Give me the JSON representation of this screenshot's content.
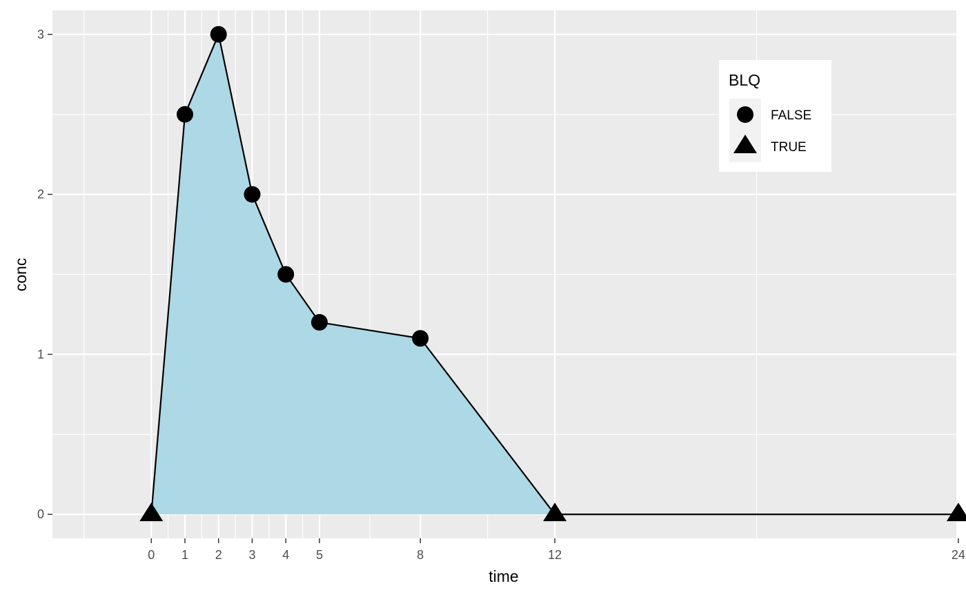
{
  "chart_data": {
    "type": "line",
    "xlabel": "time",
    "ylabel": "conc",
    "xlim": [
      -2.94,
      23.94
    ],
    "ylim": [
      -0.15,
      3.15
    ],
    "x_ticks": [
      0,
      1,
      2,
      3,
      4,
      5,
      8,
      12,
      24
    ],
    "x_tick_labels": [
      "0",
      "1",
      "2",
      "3",
      "4",
      "5",
      "8",
      "12",
      "24"
    ],
    "y_ticks": [
      0,
      1,
      2,
      3
    ],
    "y_tick_labels": [
      "0",
      "1",
      "2",
      "3"
    ],
    "x_minor_grid": [
      -2,
      0.5,
      1.5,
      2.5,
      3.5,
      4.5,
      6.5,
      10,
      18
    ],
    "y_minor_grid": [
      0.5,
      1.5,
      2.5
    ],
    "grid": true,
    "area_fill": {
      "color": "#add8e6",
      "x": [
        0,
        1,
        2,
        3,
        4,
        5,
        8,
        12
      ],
      "y": [
        0,
        2.5,
        3,
        2,
        1.5,
        1.2,
        1.1,
        0
      ]
    },
    "series": [
      {
        "x": [
          0,
          1,
          2,
          3,
          4,
          5,
          8,
          12,
          24
        ],
        "y": [
          0,
          2.5,
          3,
          2,
          1.5,
          1.2,
          1.1,
          0,
          0
        ],
        "BLQ": [
          true,
          false,
          false,
          false,
          false,
          false,
          false,
          true,
          true
        ],
        "line_color": "#000000"
      }
    ],
    "legend": {
      "title": "BLQ",
      "placement": "top-right",
      "entries": [
        {
          "label": "FALSE",
          "shape": "circle"
        },
        {
          "label": "TRUE",
          "shape": "triangle"
        }
      ]
    },
    "colors": {
      "panel_background": "#ebebeb",
      "grid": "#ffffff",
      "points": "#000000"
    }
  }
}
